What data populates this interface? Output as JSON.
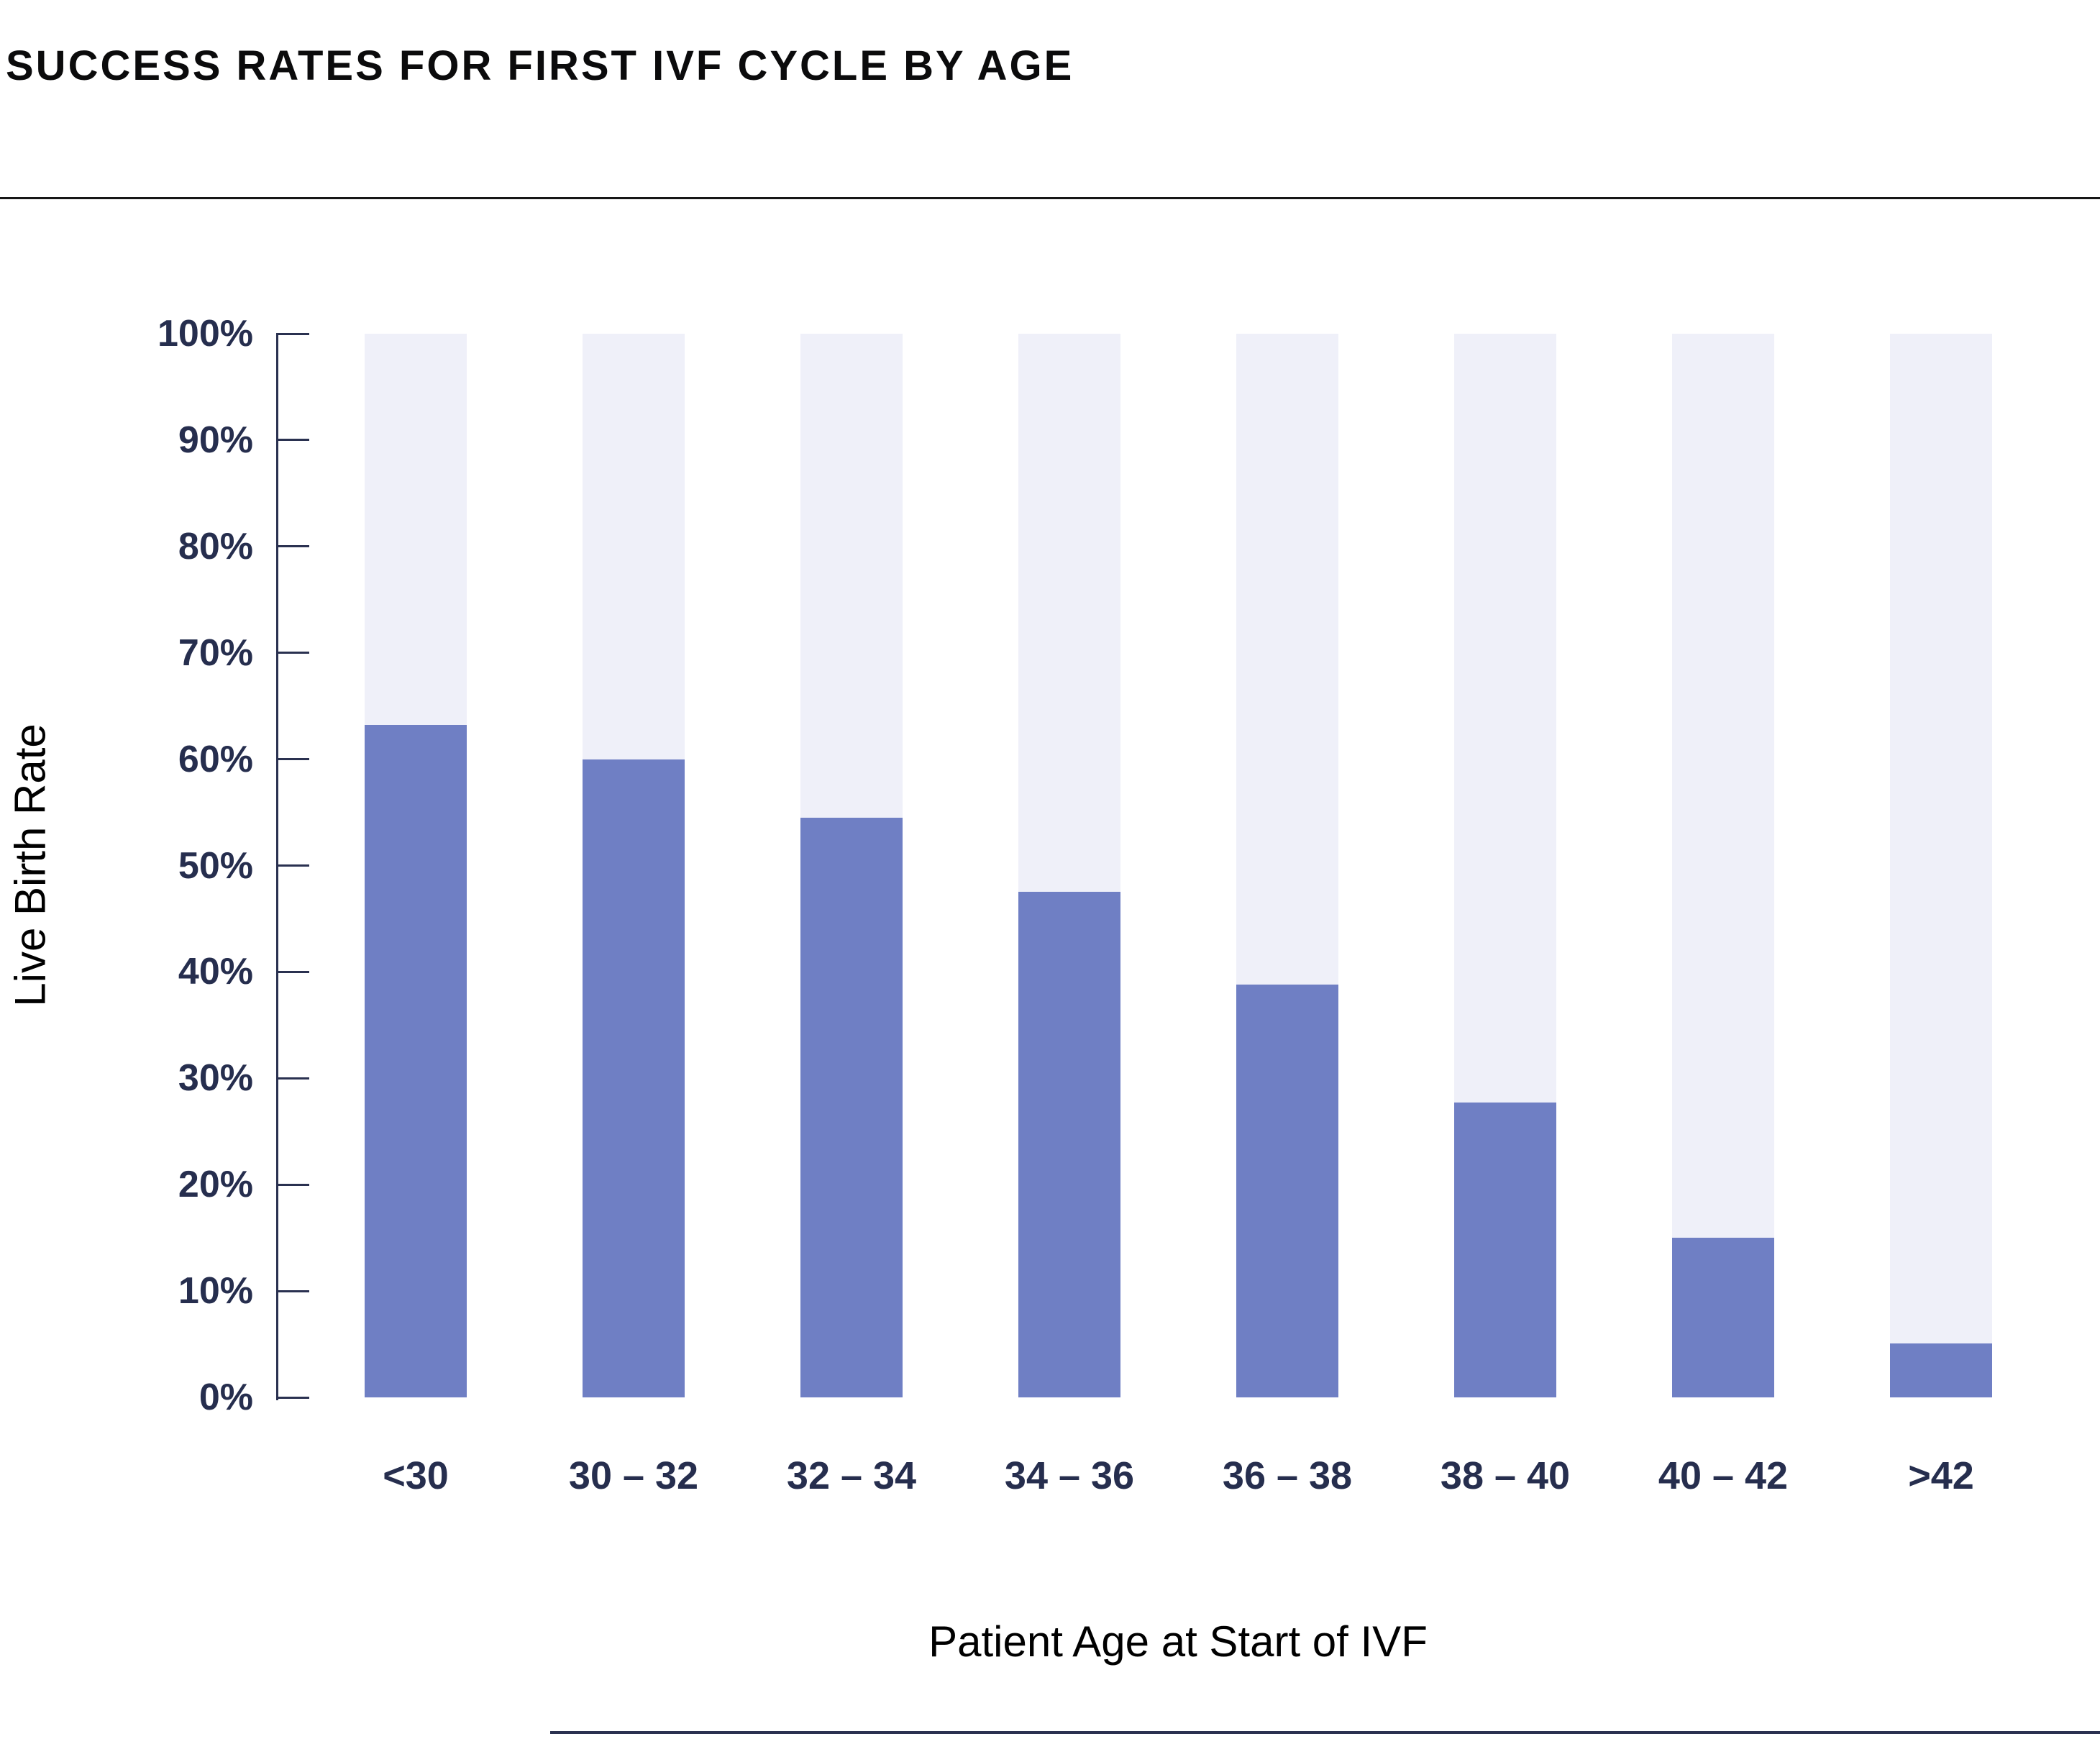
{
  "chart_data": {
    "type": "bar",
    "title": "SUCCESS RATES FOR FIRST IVF CYCLE BY AGE",
    "xlabel": "Patient Age at Start of IVF",
    "ylabel": "Live Birth Rate",
    "categories": [
      "<30",
      "30 – 32",
      "32 – 34",
      "34 – 36",
      "36 – 38",
      "38 – 40",
      "40 – 42",
      ">42"
    ],
    "values": [
      63.2,
      60,
      54.5,
      47.5,
      38.8,
      27.7,
      15,
      5.1
    ],
    "ylim": [
      0,
      100
    ],
    "ytick_step": 10,
    "ytick_labels": [
      "0%",
      "10%",
      "20%",
      "30%",
      "40%",
      "50%",
      "60%",
      "70%",
      "80%",
      "90%",
      "100%"
    ],
    "grid": "off",
    "legend": "none",
    "background_columns_to_100pct": true,
    "colors": {
      "bar": "#6F7FC4",
      "column_background": "#EFF0F9",
      "axis": "#2A3150",
      "tick_label_text": "#262E4E",
      "title_text": "#0B0B0C"
    }
  }
}
